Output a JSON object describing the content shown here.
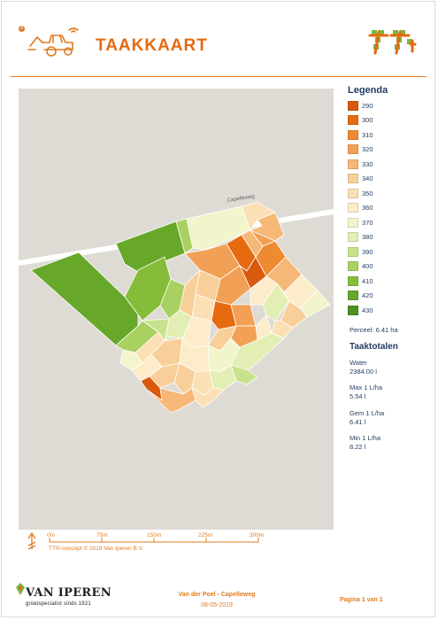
{
  "header": {
    "badge": "8",
    "title": "TAAKKAART"
  },
  "map": {
    "road_label": "Capelleweg"
  },
  "legend": {
    "title": "Legenda",
    "items": [
      {
        "label": "290",
        "color": "#d9590f"
      },
      {
        "label": "300",
        "color": "#e56a10"
      },
      {
        "label": "310",
        "color": "#ee8a32"
      },
      {
        "label": "320",
        "color": "#f2a055"
      },
      {
        "label": "330",
        "color": "#f5b876"
      },
      {
        "label": "340",
        "color": "#f8cf98"
      },
      {
        "label": "350",
        "color": "#fbe0b5"
      },
      {
        "label": "360",
        "color": "#fcecc9"
      },
      {
        "label": "370",
        "color": "#f2f4cc"
      },
      {
        "label": "380",
        "color": "#e2eeb3"
      },
      {
        "label": "390",
        "color": "#c8e28b"
      },
      {
        "label": "400",
        "color": "#a9d161"
      },
      {
        "label": "410",
        "color": "#85bd3a"
      },
      {
        "label": "420",
        "color": "#67a82a"
      },
      {
        "label": "430",
        "color": "#4f8f22"
      }
    ]
  },
  "perceel": "Perceel: 6.41 ha",
  "totals": {
    "title": "Taaktotalen",
    "items": [
      {
        "label": "Water",
        "value": "2384.00 l"
      },
      {
        "label": "Max 1 L/ha",
        "value": "5.54 l"
      },
      {
        "label": "Gem 1 L/ha",
        "value": "6.41 l"
      },
      {
        "label": "Min 1 L/ha",
        "value": "8.22 l"
      }
    ]
  },
  "scalebar": {
    "ticks": [
      "0m",
      "75m",
      "150m",
      "225m",
      "300m"
    ]
  },
  "copyright": "TT®-concept © 2019 Van Iperen B.V.",
  "footer": {
    "brand": "VAN IPEREN",
    "tagline": "groeispecialist sinds 1921",
    "project": "Van der Poel - Capelleweg",
    "date": "08-05-2019",
    "page": "Pagina 1 van 1"
  }
}
